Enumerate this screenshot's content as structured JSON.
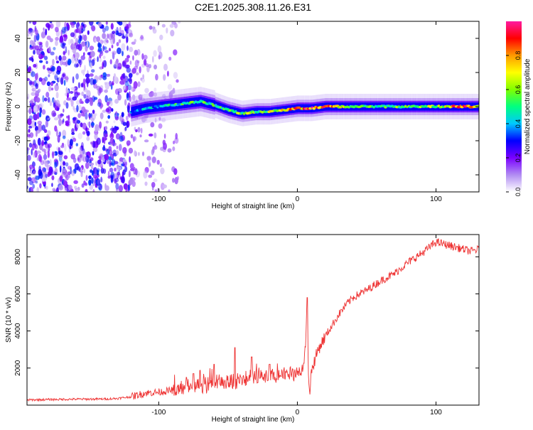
{
  "figure_title": "C2E1.2025.308.11.26.E31",
  "chart_data": [
    {
      "type": "heatmap",
      "title": "C2E1.2025.308.11.26.E31",
      "xlabel": "Height of straight line (km)",
      "ylabel": "Frequency (Hz)",
      "xlim": [
        -195,
        131
      ],
      "ylim": [
        -50,
        50
      ],
      "xticks": [
        -100,
        0,
        100
      ],
      "yticks": [
        -40,
        -20,
        0,
        20,
        40
      ],
      "colorbar": {
        "label": "Normalized spectral amplitude",
        "range": [
          0,
          1
        ],
        "ticks": [
          0,
          0.2,
          0.4,
          0.6,
          0.8
        ],
        "tick_labels": [
          "0.0",
          "0.2",
          "0.4",
          "0.6",
          "0.8"
        ],
        "colors": [
          "#ffffff",
          "#b18cf2",
          "#7a00ff",
          "#0000ff",
          "#00c8ff",
          "#00ff80",
          "#80ff00",
          "#ffff00",
          "#ff9900",
          "#ff0000",
          "#ff1aa0"
        ]
      },
      "ridge": {
        "description": "frequency of peak spectral amplitude vs height",
        "x": [
          -120,
          -110,
          -100,
          -90,
          -80,
          -70,
          -60,
          -50,
          -40,
          -30,
          -20,
          -10,
          0,
          10,
          20,
          40,
          60,
          80,
          100,
          120,
          131
        ],
        "y": [
          -3,
          -1,
          0,
          1,
          2,
          3,
          1,
          -2,
          -4,
          -3,
          -3,
          -2,
          -1,
          -1,
          0,
          0,
          0,
          0,
          0,
          0,
          0
        ],
        "peak_amplitude": [
          0.35,
          0.4,
          0.4,
          0.45,
          0.5,
          0.5,
          0.5,
          0.55,
          0.6,
          0.55,
          0.6,
          0.7,
          0.75,
          0.85,
          0.8,
          0.55,
          0.5,
          0.55,
          0.6,
          0.85,
          0.6
        ]
      },
      "noise_region_x": [
        -195,
        -85
      ]
    },
    {
      "type": "line",
      "xlabel": "Height of straight line (km)",
      "ylabel": "SNR (10 * v/v)",
      "xlim": [
        -195,
        131
      ],
      "ylim": [
        0,
        9200
      ],
      "xticks": [
        -100,
        0,
        100
      ],
      "yticks": [
        2000,
        4000,
        6000,
        8000
      ],
      "series": [
        {
          "name": "SNR",
          "color": "#ee3333",
          "x": [
            -195,
            -180,
            -160,
            -140,
            -130,
            -120,
            -110,
            -100,
            -90,
            -80,
            -70,
            -60,
            -50,
            -45,
            -40,
            -35,
            -30,
            -25,
            -20,
            -15,
            -10,
            -5,
            0,
            3,
            5,
            6,
            7,
            8,
            9,
            10,
            12,
            15,
            20,
            25,
            30,
            35,
            40,
            50,
            60,
            70,
            80,
            90,
            95,
            100,
            105,
            110,
            120,
            125,
            131
          ],
          "y": [
            280,
            300,
            320,
            330,
            360,
            450,
            650,
            700,
            800,
            950,
            1050,
            1150,
            1250,
            1300,
            1350,
            1400,
            1450,
            1500,
            1550,
            1650,
            1700,
            1750,
            1800,
            1950,
            2300,
            3500,
            5300,
            1800,
            700,
            1800,
            2300,
            3000,
            3700,
            4300,
            4900,
            5400,
            5800,
            6200,
            6700,
            7100,
            7700,
            8200,
            8500,
            8800,
            8700,
            8600,
            8400,
            8300,
            8400
          ]
        }
      ],
      "spikes": [
        {
          "x": -80,
          "y": 1500
        },
        {
          "x": -75,
          "y": 1700
        },
        {
          "x": -60,
          "y": 2200
        },
        {
          "x": -45,
          "y": 3100
        },
        {
          "x": -33,
          "y": 2600
        },
        {
          "x": -20,
          "y": 2200
        },
        {
          "x": 7,
          "y": 5800
        }
      ]
    }
  ]
}
